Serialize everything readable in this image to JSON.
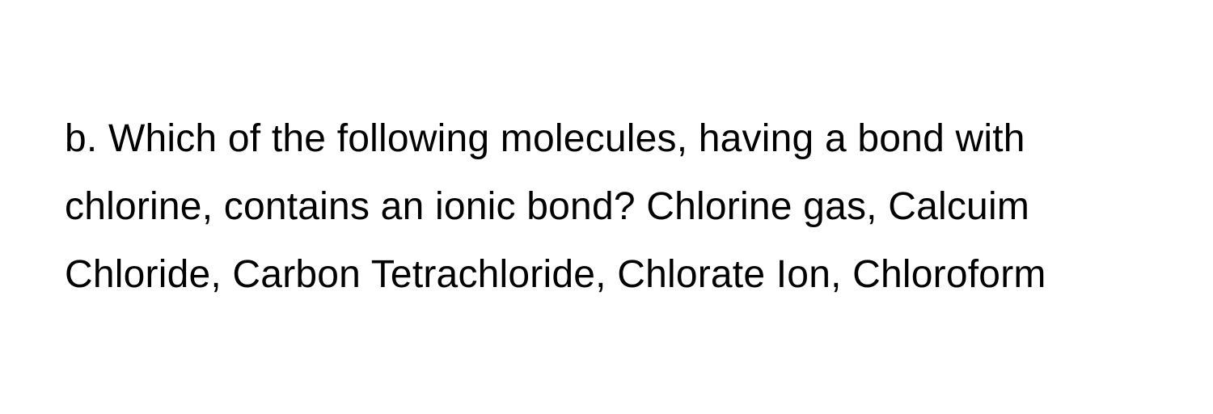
{
  "question": {
    "text": "b. Which of the following molecules, having a bond with chlorine, contains an ionic bond? Chlorine gas, Calcuim Chloride, Carbon Tetrachloride, Chlorate Ion, Chloroform",
    "fontsize": 48,
    "line_height": 1.75,
    "color": "#000000",
    "background_color": "#ffffff",
    "font_weight": 400
  }
}
